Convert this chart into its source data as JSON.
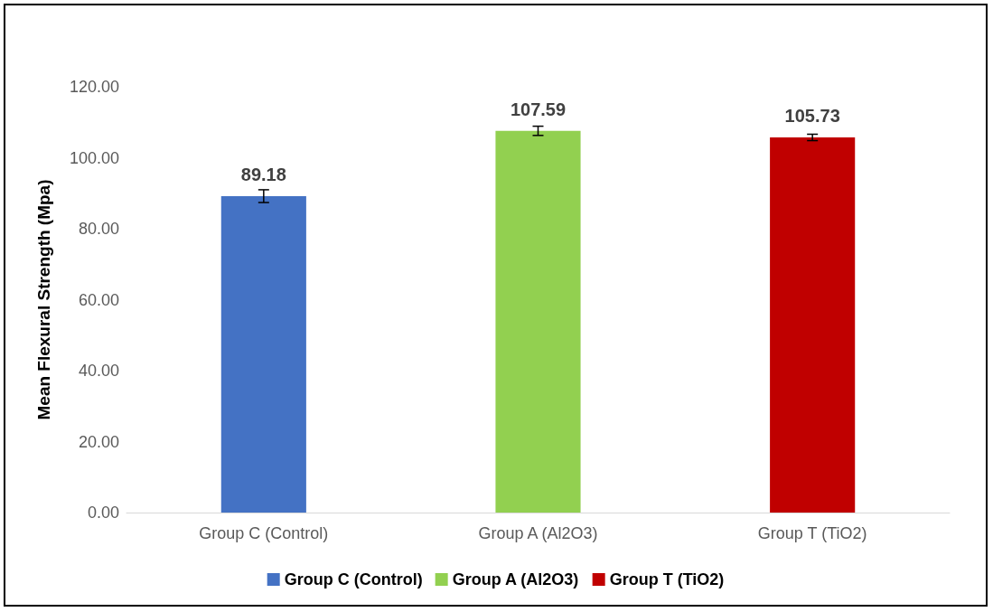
{
  "chart_data": {
    "type": "bar",
    "ylabel": "Mean Flexural Strength (Mpa)",
    "categories": [
      "Group C (Control)",
      "Group A (Al2O3)",
      "Group T (TiO2)"
    ],
    "series": [
      {
        "name": "Group C (Control)",
        "color": "#4472c4",
        "values": [
          89.18,
          null,
          null
        ],
        "errors": [
          1.8,
          null,
          null
        ]
      },
      {
        "name": "Group A (Al2O3)",
        "color": "#92d050",
        "values": [
          null,
          107.59,
          null
        ],
        "errors": [
          null,
          1.3,
          null
        ]
      },
      {
        "name": "Group T (TiO2)",
        "color": "#c00000",
        "values": [
          null,
          null,
          105.73
        ],
        "errors": [
          null,
          null,
          0.9
        ]
      }
    ],
    "ylim": [
      0,
      120
    ],
    "yticks": [
      {
        "value": 0,
        "label": "0.00"
      },
      {
        "value": 20,
        "label": "20.00"
      },
      {
        "value": 40,
        "label": "40.00"
      },
      {
        "value": 60,
        "label": "60.00"
      },
      {
        "value": 80,
        "label": "80.00"
      },
      {
        "value": 100,
        "label": "100.00"
      },
      {
        "value": 120,
        "label": "120.00"
      }
    ],
    "data_labels": true,
    "grid": false,
    "legend": "bottom"
  }
}
